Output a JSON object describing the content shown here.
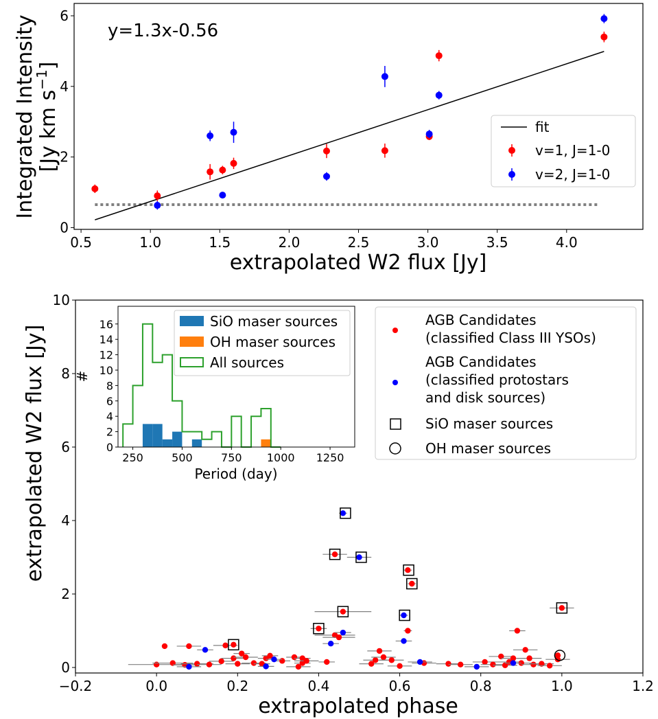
{
  "chart_data": [
    {
      "type": "scatter",
      "title": "",
      "xlabel": "extrapolated W2 flux [Jy]",
      "ylabel_lines": [
        "Integrated Intensity",
        "[Jy km s",
        "−1",
        "]"
      ],
      "xlim": [
        0.45,
        4.55
      ],
      "ylim": [
        -0.05,
        6.35
      ],
      "xticks": [
        0.5,
        1.0,
        1.5,
        2.0,
        2.5,
        3.0,
        3.5,
        4.0
      ],
      "xtick_labels": [
        "0.5",
        "1.0",
        "1.5",
        "2.0",
        "2.5",
        "3.0",
        "3.5",
        "4.0"
      ],
      "yticks": [
        0,
        2,
        4,
        6
      ],
      "ytick_labels": [
        "0",
        "2",
        "4",
        "6"
      ],
      "annotation": "y=1.3x-0.56",
      "fit": {
        "name": "fit",
        "slope": 1.3,
        "intercept": -0.56,
        "x": [
          0.6,
          4.27
        ],
        "color": "#000000"
      },
      "threshold": {
        "y": 0.65,
        "x": [
          0.6,
          4.23
        ],
        "color": "#808080"
      },
      "series": [
        {
          "name": "v=1, J=1-0",
          "color": "#ff0000",
          "points": [
            {
              "x": 0.6,
              "y": 1.1,
              "err": 0.12
            },
            {
              "x": 1.05,
              "y": 0.9,
              "err": 0.15
            },
            {
              "x": 1.43,
              "y": 1.58,
              "err": 0.22
            },
            {
              "x": 1.52,
              "y": 1.63,
              "err": 0.12
            },
            {
              "x": 1.6,
              "y": 1.82,
              "err": 0.16
            },
            {
              "x": 2.27,
              "y": 2.17,
              "err": 0.2
            },
            {
              "x": 2.69,
              "y": 2.18,
              "err": 0.2
            },
            {
              "x": 3.01,
              "y": 2.58,
              "err": 0.1
            },
            {
              "x": 3.08,
              "y": 4.87,
              "err": 0.16
            },
            {
              "x": 4.27,
              "y": 5.4,
              "err": 0.15
            }
          ]
        },
        {
          "name": "v=2, J=1-0",
          "color": "#0000ff",
          "points": [
            {
              "x": 1.05,
              "y": 0.63,
              "err": 0.12
            },
            {
              "x": 1.43,
              "y": 2.6,
              "err": 0.15
            },
            {
              "x": 1.52,
              "y": 0.92,
              "err": 0.05
            },
            {
              "x": 1.6,
              "y": 2.7,
              "err": 0.3
            },
            {
              "x": 2.27,
              "y": 1.45,
              "err": 0.12
            },
            {
              "x": 2.69,
              "y": 4.28,
              "err": 0.3
            },
            {
              "x": 3.01,
              "y": 2.65,
              "err": 0.12
            },
            {
              "x": 3.08,
              "y": 3.75,
              "err": 0.12
            },
            {
              "x": 4.27,
              "y": 5.92,
              "err": 0.13
            }
          ]
        }
      ],
      "legend": {
        "placement": "center-right",
        "entries": [
          "fit",
          "v=1, J=1-0",
          "v=2, J=1-0"
        ]
      }
    },
    {
      "type": "scatter",
      "title": "",
      "xlabel": "extrapolated phase",
      "ylabel": "extrapolated W2 flux [Jy]",
      "xlim": [
        -0.2,
        1.2
      ],
      "ylim": [
        -0.15,
        10
      ],
      "xticks": [
        -0.2,
        0.0,
        0.2,
        0.4,
        0.6,
        0.8,
        1.0,
        1.2
      ],
      "xtick_labels": [
        "−0.2",
        "0.0",
        "0.2",
        "0.4",
        "0.6",
        "0.8",
        "1.0",
        "1.2"
      ],
      "yticks": [
        0,
        2,
        4,
        6,
        8,
        10
      ],
      "ytick_labels": [
        "0",
        "2",
        "4",
        "6",
        "8",
        "10"
      ],
      "series": [
        {
          "name": "AGB Candidates (classified Class III YSOs)",
          "color": "#ff0000",
          "points": [
            {
              "x": 0.0,
              "y": 0.08,
              "xerr": 0.07
            },
            {
              "x": 0.02,
              "y": 0.58,
              "xerr": 0.0
            },
            {
              "x": 0.04,
              "y": 0.12,
              "xerr": 0.05
            },
            {
              "x": 0.07,
              "y": 0.07,
              "xerr": 0.03
            },
            {
              "x": 0.08,
              "y": 0.58,
              "xerr": 0.03
            },
            {
              "x": 0.1,
              "y": 0.1,
              "xerr": 0.04
            },
            {
              "x": 0.13,
              "y": 0.08,
              "xerr": 0.03
            },
            {
              "x": 0.16,
              "y": 0.17,
              "xerr": 0.03
            },
            {
              "x": 0.17,
              "y": 0.6,
              "xerr": 0.03
            },
            {
              "x": 0.19,
              "y": 0.62,
              "xerr": 0.0
            },
            {
              "x": 0.19,
              "y": 0.25,
              "xerr": 0.03
            },
            {
              "x": 0.2,
              "y": 0.1,
              "xerr": 0.03
            },
            {
              "x": 0.21,
              "y": 0.38,
              "xerr": 0.02
            },
            {
              "x": 0.22,
              "y": 0.28,
              "xerr": 0.03
            },
            {
              "x": 0.24,
              "y": 0.12,
              "xerr": 0.03
            },
            {
              "x": 0.26,
              "y": 0.1,
              "xerr": 0.02
            },
            {
              "x": 0.27,
              "y": 0.25,
              "xerr": 0.02
            },
            {
              "x": 0.28,
              "y": 0.32,
              "xerr": 0.02
            },
            {
              "x": 0.31,
              "y": 0.18,
              "xerr": 0.02
            },
            {
              "x": 0.34,
              "y": 0.28,
              "xerr": 0.02
            },
            {
              "x": 0.35,
              "y": 0.02,
              "xerr": 0.03
            },
            {
              "x": 0.36,
              "y": 0.25,
              "xerr": 0.02
            },
            {
              "x": 0.36,
              "y": 0.12,
              "xerr": 0.02
            },
            {
              "x": 0.37,
              "y": 0.18,
              "xerr": 0.03
            },
            {
              "x": 0.4,
              "y": 1.06,
              "xerr": 0.02
            },
            {
              "x": 0.42,
              "y": 0.15,
              "xerr": 0.02
            },
            {
              "x": 0.44,
              "y": 0.88,
              "xerr": 0.05
            },
            {
              "x": 0.44,
              "y": 3.08,
              "xerr": 0.03
            },
            {
              "x": 0.45,
              "y": 0.82,
              "xerr": 0.04
            },
            {
              "x": 0.46,
              "y": 1.52,
              "xerr": 0.07
            },
            {
              "x": 0.53,
              "y": 0.1,
              "xerr": 0.03
            },
            {
              "x": 0.54,
              "y": 0.2,
              "xerr": 0.03
            },
            {
              "x": 0.55,
              "y": 0.45,
              "xerr": 0.03
            },
            {
              "x": 0.56,
              "y": 0.28,
              "xerr": 0.03
            },
            {
              "x": 0.58,
              "y": 0.2,
              "xerr": 0.03
            },
            {
              "x": 0.6,
              "y": 0.04,
              "xerr": 0.03
            },
            {
              "x": 0.62,
              "y": 1.0,
              "xerr": 0.01
            },
            {
              "x": 0.62,
              "y": 2.65,
              "xerr": 0.01
            },
            {
              "x": 0.63,
              "y": 2.28,
              "xerr": 0.01
            },
            {
              "x": 0.66,
              "y": 0.12,
              "xerr": 0.03
            },
            {
              "x": 0.72,
              "y": 0.1,
              "xerr": 0.03
            },
            {
              "x": 0.75,
              "y": 0.08,
              "xerr": 0.03
            },
            {
              "x": 0.81,
              "y": 0.15,
              "xerr": 0.03
            },
            {
              "x": 0.83,
              "y": 0.08,
              "xerr": 0.03
            },
            {
              "x": 0.85,
              "y": 0.3,
              "xerr": 0.03
            },
            {
              "x": 0.86,
              "y": 0.06,
              "xerr": 0.03
            },
            {
              "x": 0.87,
              "y": 0.15,
              "xerr": 0.03
            },
            {
              "x": 0.88,
              "y": 0.25,
              "xerr": 0.03
            },
            {
              "x": 0.89,
              "y": 1.0,
              "xerr": 0.02
            },
            {
              "x": 0.9,
              "y": 0.12,
              "xerr": 0.03
            },
            {
              "x": 0.91,
              "y": 0.48,
              "xerr": 0.03
            },
            {
              "x": 0.92,
              "y": 0.25,
              "xerr": 0.03
            },
            {
              "x": 0.93,
              "y": 0.08,
              "xerr": 0.03
            },
            {
              "x": 0.95,
              "y": 0.1,
              "xerr": 0.03
            },
            {
              "x": 0.97,
              "y": 0.05,
              "xerr": 0.03
            },
            {
              "x": 0.99,
              "y": 0.22,
              "xerr": 0.03
            },
            {
              "x": 0.99,
              "y": 0.33,
              "xerr": 0.0
            },
            {
              "x": 1.0,
              "y": 1.62,
              "xerr": 0.03
            }
          ]
        },
        {
          "name": "AGB Candidates (classified protostars and disk sources)",
          "color": "#0000ff",
          "points": [
            {
              "x": 0.08,
              "y": 0.02,
              "xerr": 0.03
            },
            {
              "x": 0.12,
              "y": 0.48,
              "xerr": 0.02
            },
            {
              "x": 0.27,
              "y": 0.03,
              "xerr": 0.02
            },
            {
              "x": 0.29,
              "y": 0.22,
              "xerr": 0.02
            },
            {
              "x": 0.43,
              "y": 0.65,
              "xerr": 0.02
            },
            {
              "x": 0.46,
              "y": 0.95,
              "xerr": 0.02
            },
            {
              "x": 0.46,
              "y": 4.2,
              "xerr": 0.01
            },
            {
              "x": 0.5,
              "y": 3.0,
              "xerr": 0.03
            },
            {
              "x": 0.61,
              "y": 0.72,
              "xerr": 0.02
            },
            {
              "x": 0.61,
              "y": 1.42,
              "xerr": 0.01
            },
            {
              "x": 0.65,
              "y": 0.15,
              "xerr": 0.03
            },
            {
              "x": 0.79,
              "y": 0.02,
              "xerr": 0.03
            },
            {
              "x": 0.88,
              "y": 0.12,
              "xerr": 0.02
            }
          ]
        }
      ],
      "sio_maser_sources": [
        {
          "x": 0.19,
          "y": 0.62
        },
        {
          "x": 0.4,
          "y": 1.06
        },
        {
          "x": 0.44,
          "y": 3.08
        },
        {
          "x": 0.46,
          "y": 1.52
        },
        {
          "x": 0.466,
          "y": 4.2
        },
        {
          "x": 0.505,
          "y": 3.0
        },
        {
          "x": 0.612,
          "y": 1.42
        },
        {
          "x": 0.622,
          "y": 2.65
        },
        {
          "x": 0.63,
          "y": 2.28
        },
        {
          "x": 1.0,
          "y": 1.62
        }
      ],
      "oh_maser_sources": [
        {
          "x": 0.995,
          "y": 0.33
        }
      ],
      "legend": {
        "placement": "upper-right",
        "entries": [
          {
            "lines": [
              "AGB Candidates",
              "(classified Class III YSOs)"
            ],
            "color": "#ff0000",
            "marker": "dot"
          },
          {
            "lines": [
              "AGB Candidates",
              "(classified protostars",
              "and disk sources)"
            ],
            "color": "#0000ff",
            "marker": "dot"
          },
          {
            "lines": [
              "SiO maser sources"
            ],
            "color": "#000000",
            "marker": "square"
          },
          {
            "lines": [
              "OH maser sources"
            ],
            "color": "#000000",
            "marker": "circle"
          }
        ]
      }
    },
    {
      "type": "bar",
      "subtype": "histogram-inset",
      "xlabel": "Period (day)",
      "ylabel": "#",
      "xlim": [
        175,
        1375
      ],
      "ylim": [
        0,
        18.3
      ],
      "xticks": [
        250,
        500,
        750,
        1000,
        1250
      ],
      "xtick_labels": [
        "250",
        "500",
        "750",
        "1000",
        "1250"
      ],
      "yticks": [
        0,
        2,
        4,
        6,
        8,
        10,
        12,
        14,
        16
      ],
      "ytick_labels": [
        "0",
        "2",
        "4",
        "6",
        "8",
        "10",
        "12",
        "14",
        "16"
      ],
      "bin_edges": [
        200,
        250,
        300,
        350,
        400,
        450,
        500,
        550,
        600,
        650,
        700,
        750,
        800,
        850,
        900,
        950,
        1000
      ],
      "series": [
        {
          "name": "SiO maser sources",
          "color": "#1f77b4",
          "style": "filled",
          "counts": [
            0,
            0,
            3,
            3,
            1,
            2,
            0,
            1,
            0,
            0,
            0,
            0,
            0,
            0,
            0,
            0
          ]
        },
        {
          "name": "OH maser sources",
          "color": "#ff7f0e",
          "style": "filled",
          "counts": [
            0,
            0,
            0,
            0,
            0,
            0,
            0,
            0,
            0,
            0,
            0,
            0,
            0,
            0,
            1,
            0
          ]
        },
        {
          "name": "All sources",
          "color": "#2ca02c",
          "style": "step",
          "counts": [
            3,
            8,
            16,
            11,
            12,
            6,
            2,
            2,
            1,
            2,
            0,
            4,
            0,
            4,
            5,
            0
          ]
        }
      ],
      "legend": {
        "placement": "upper-right",
        "entries": [
          "SiO maser sources",
          "OH maser sources",
          "All sources"
        ]
      }
    }
  ]
}
